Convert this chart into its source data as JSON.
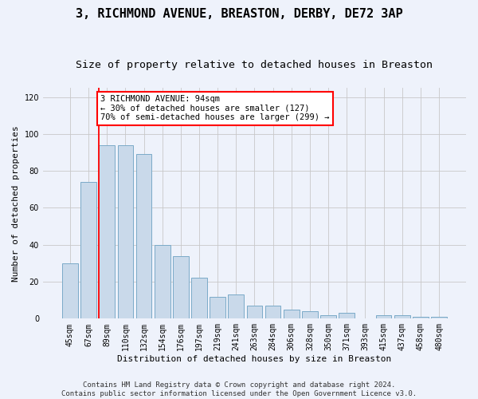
{
  "title": "3, RICHMOND AVENUE, BREASTON, DERBY, DE72 3AP",
  "subtitle": "Size of property relative to detached houses in Breaston",
  "xlabel": "Distribution of detached houses by size in Breaston",
  "ylabel": "Number of detached properties",
  "footer_line1": "Contains HM Land Registry data © Crown copyright and database right 2024.",
  "footer_line2": "Contains public sector information licensed under the Open Government Licence v3.0.",
  "bar_labels": [
    "45sqm",
    "67sqm",
    "89sqm",
    "110sqm",
    "132sqm",
    "154sqm",
    "176sqm",
    "197sqm",
    "219sqm",
    "241sqm",
    "263sqm",
    "284sqm",
    "306sqm",
    "328sqm",
    "350sqm",
    "371sqm",
    "393sqm",
    "415sqm",
    "437sqm",
    "458sqm",
    "480sqm"
  ],
  "bar_values": [
    30,
    74,
    94,
    94,
    89,
    40,
    34,
    22,
    12,
    13,
    7,
    7,
    5,
    4,
    2,
    3,
    0,
    2,
    2,
    1,
    1
  ],
  "bar_color": "#c9d9ea",
  "bar_edge_color": "#7aaac8",
  "ylim": [
    0,
    125
  ],
  "yticks": [
    0,
    20,
    40,
    60,
    80,
    100,
    120
  ],
  "red_line_bar_index": 2,
  "annotation_text": "3 RICHMOND AVENUE: 94sqm\n← 30% of detached houses are smaller (127)\n70% of semi-detached houses are larger (299) →",
  "annotation_box_color": "white",
  "annotation_box_edge_color": "red",
  "bg_color": "#eef2fb",
  "grid_color": "#c8c8c8",
  "title_fontsize": 11,
  "subtitle_fontsize": 9.5,
  "axis_label_fontsize": 8,
  "tick_fontsize": 7,
  "annotation_fontsize": 7.5,
  "footer_fontsize": 6.5
}
